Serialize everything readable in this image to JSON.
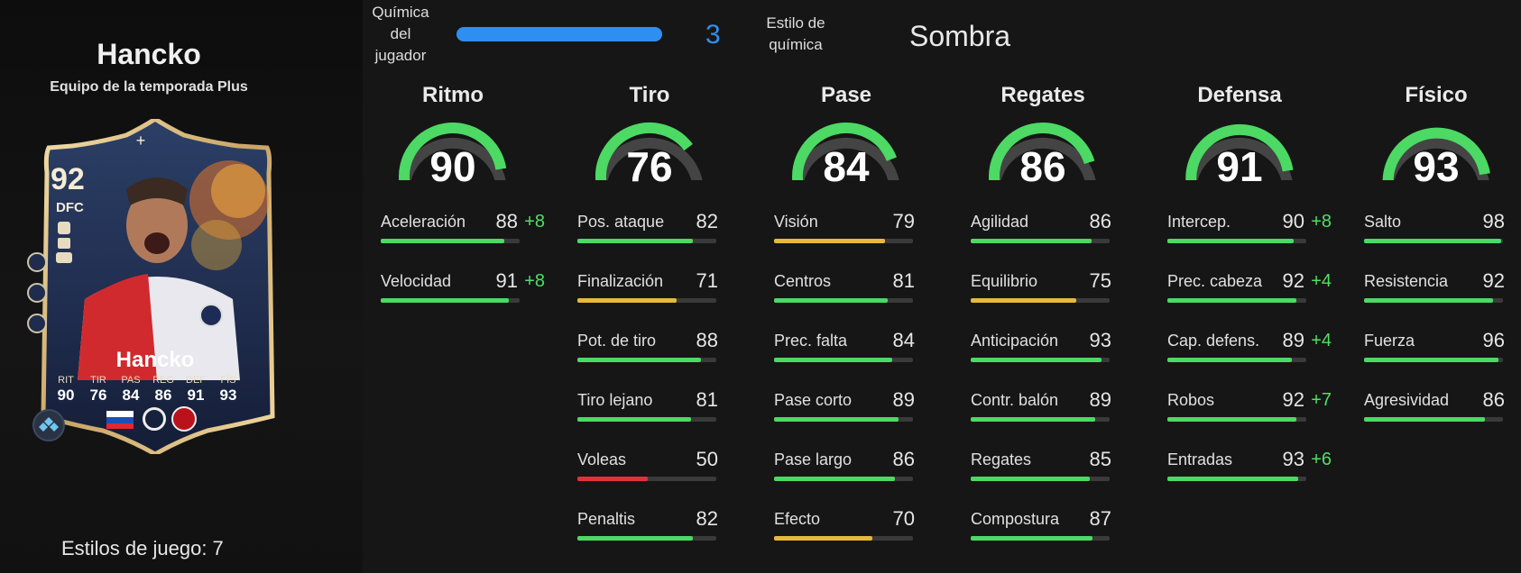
{
  "player": {
    "name": "Hancko",
    "subtitle": "Equipo de la temporada Plus",
    "playstyles_text": "Estilos de juego: 7"
  },
  "card": {
    "rating": "92",
    "position": "DFC",
    "name": "Hancko",
    "stats": [
      {
        "label": "RIT",
        "value": "90"
      },
      {
        "label": "TIR",
        "value": "76"
      },
      {
        "label": "PAS",
        "value": "84"
      },
      {
        "label": "REG",
        "value": "86"
      },
      {
        "label": "DEF",
        "value": "91"
      },
      {
        "label": "FÍS",
        "value": "93"
      }
    ]
  },
  "chemistry": {
    "label": "Química del jugador",
    "value": "3",
    "bar_fraction": 1.0,
    "style_label": "Estilo de química",
    "style_value": "Sombra"
  },
  "colors": {
    "high": "#4cd964",
    "mid": "#e8b83a",
    "low": "#e0313b",
    "bonus": "#4ee062",
    "chem_blue": "#2f8ff0"
  },
  "categories": [
    {
      "title": "Ritmo",
      "value": "90",
      "stats": [
        {
          "name": "Aceleración",
          "value": "88",
          "bonus": "+8"
        },
        {
          "name": "Velocidad",
          "value": "91",
          "bonus": "+8"
        }
      ]
    },
    {
      "title": "Tiro",
      "value": "76",
      "stats": [
        {
          "name": "Pos. ataque",
          "value": "82",
          "bonus": ""
        },
        {
          "name": "Finalización",
          "value": "71",
          "bonus": ""
        },
        {
          "name": "Pot. de tiro",
          "value": "88",
          "bonus": ""
        },
        {
          "name": "Tiro lejano",
          "value": "81",
          "bonus": ""
        },
        {
          "name": "Voleas",
          "value": "50",
          "bonus": ""
        },
        {
          "name": "Penaltis",
          "value": "82",
          "bonus": ""
        }
      ]
    },
    {
      "title": "Pase",
      "value": "84",
      "stats": [
        {
          "name": "Visión",
          "value": "79",
          "bonus": ""
        },
        {
          "name": "Centros",
          "value": "81",
          "bonus": ""
        },
        {
          "name": "Prec. falta",
          "value": "84",
          "bonus": ""
        },
        {
          "name": "Pase corto",
          "value": "89",
          "bonus": ""
        },
        {
          "name": "Pase largo",
          "value": "86",
          "bonus": ""
        },
        {
          "name": "Efecto",
          "value": "70",
          "bonus": ""
        }
      ]
    },
    {
      "title": "Regates",
      "value": "86",
      "stats": [
        {
          "name": "Agilidad",
          "value": "86",
          "bonus": ""
        },
        {
          "name": "Equilibrio",
          "value": "75",
          "bonus": ""
        },
        {
          "name": "Anticipación",
          "value": "93",
          "bonus": ""
        },
        {
          "name": "Contr. balón",
          "value": "89",
          "bonus": ""
        },
        {
          "name": "Regates",
          "value": "85",
          "bonus": ""
        },
        {
          "name": "Compostura",
          "value": "87",
          "bonus": ""
        }
      ]
    },
    {
      "title": "Defensa",
      "value": "91",
      "stats": [
        {
          "name": "Intercep.",
          "value": "90",
          "bonus": "+8"
        },
        {
          "name": "Prec. cabeza",
          "value": "92",
          "bonus": "+4"
        },
        {
          "name": "Cap. defens.",
          "value": "89",
          "bonus": "+4"
        },
        {
          "name": "Robos",
          "value": "92",
          "bonus": "+7"
        },
        {
          "name": "Entradas",
          "value": "93",
          "bonus": "+6"
        }
      ]
    },
    {
      "title": "Físico",
      "value": "93",
      "stats": [
        {
          "name": "Salto",
          "value": "98",
          "bonus": ""
        },
        {
          "name": "Resistencia",
          "value": "92",
          "bonus": ""
        },
        {
          "name": "Fuerza",
          "value": "96",
          "bonus": ""
        },
        {
          "name": "Agresividad",
          "value": "86",
          "bonus": ""
        }
      ]
    }
  ]
}
